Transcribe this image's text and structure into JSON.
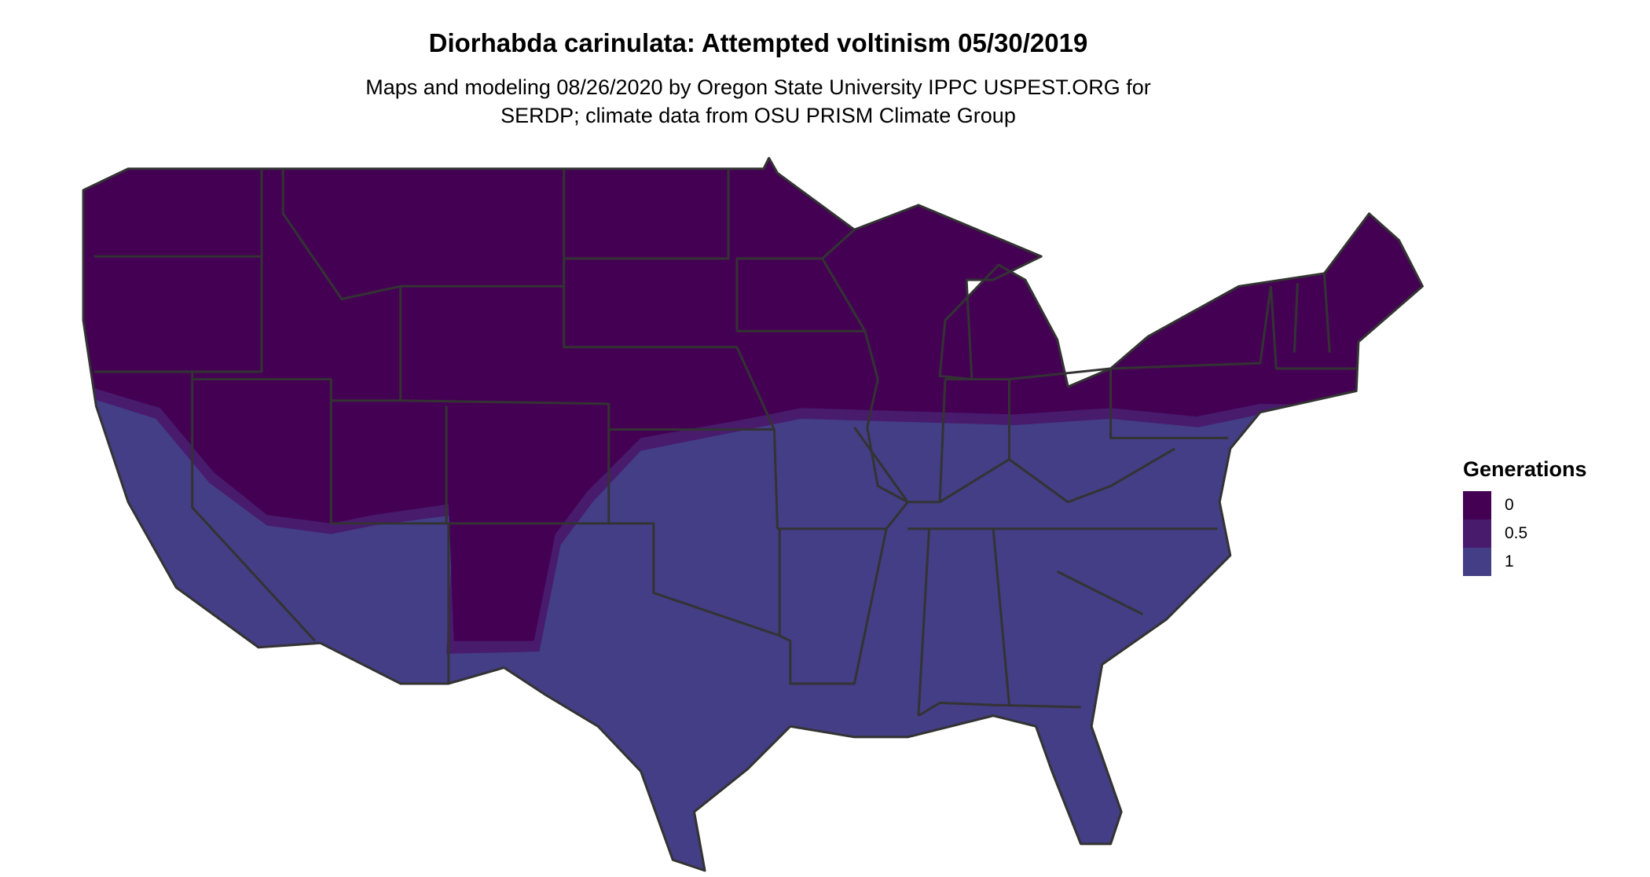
{
  "title": "Diorhabda carinulata: Attempted voltinism 05/30/2019",
  "subtitle_lines": [
    "Maps and modeling 08/26/2020 by Oregon State University IPPC USPEST.ORG for",
    "SERDP; climate data from OSU PRISM Climate Group"
  ],
  "legend": {
    "title": "Generations",
    "items": [
      {
        "label": "0",
        "color": "#440154"
      },
      {
        "label": "0.5",
        "color": "#481b6d"
      },
      {
        "label": "1",
        "color": "#433e85"
      }
    ]
  },
  "colors": {
    "border": "#333333",
    "background": "#ffffff"
  }
}
